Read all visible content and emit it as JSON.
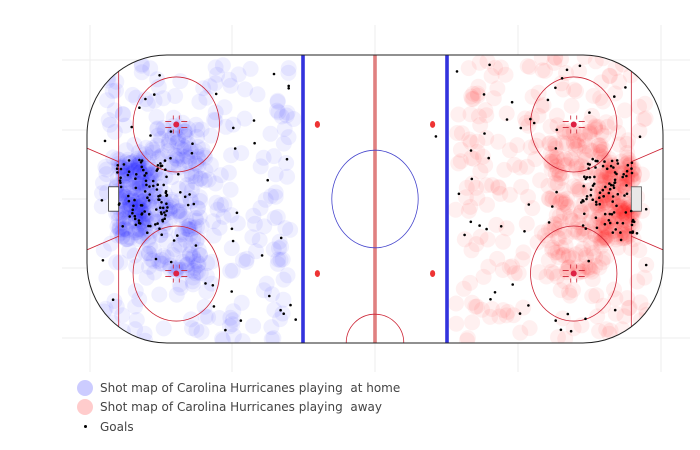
{
  "chart_data": {
    "type": "scatter",
    "title": "",
    "xlabel": "",
    "ylabel": "",
    "xlim": [
      -100,
      100
    ],
    "ylim": [
      -42.5,
      42.5
    ],
    "grid": true,
    "legend_position": "bottom-left",
    "series": [
      {
        "name": "Shot map of Carolina Hurricanes playing  at home",
        "color": "#0000ff",
        "marker": "translucent-circle",
        "regions": [
          {
            "x": [
              -90,
              -78
            ],
            "y": [
              -12,
              12
            ],
            "count": 170
          },
          {
            "x": [
              -80,
              -60
            ],
            "y": [
              -22,
              22
            ],
            "count": 170
          },
          {
            "x": [
              -95,
              -28
            ],
            "y": [
              -42,
              42
            ],
            "count": 260
          }
        ]
      },
      {
        "name": "Shot map of Carolina Hurricanes playing  away",
        "color": "#ff0000",
        "marker": "translucent-circle",
        "regions": [
          {
            "x": [
              78,
              90
            ],
            "y": [
              -12,
              12
            ],
            "count": 170
          },
          {
            "x": [
              60,
              80
            ],
            "y": [
              -22,
              22
            ],
            "count": 170
          },
          {
            "x": [
              28,
              95
            ],
            "y": [
              -42,
              42
            ],
            "count": 260
          }
        ]
      },
      {
        "name": "Goals",
        "color": "#000000",
        "marker": "dot",
        "regions": [
          {
            "x": [
              -90,
              -72
            ],
            "y": [
              -10,
              12
            ],
            "count": 90
          },
          {
            "x": [
              -96,
              -27
            ],
            "y": [
              -40,
              40
            ],
            "count": 55
          },
          {
            "x": [
              72,
              90
            ],
            "y": [
              -10,
              12
            ],
            "count": 90
          },
          {
            "x": [
              27,
              96
            ],
            "y": [
              -40,
              40
            ],
            "count": 50
          },
          {
            "x": [
              -3,
              50
            ],
            "y": [
              -40,
              40
            ],
            "count": 4
          }
        ]
      }
    ]
  },
  "colors": {
    "home": "#0000ff",
    "away": "#ff0000",
    "blue_line": "#3333dd",
    "red_line": "#e08080",
    "faceoff": "#cc2233"
  }
}
